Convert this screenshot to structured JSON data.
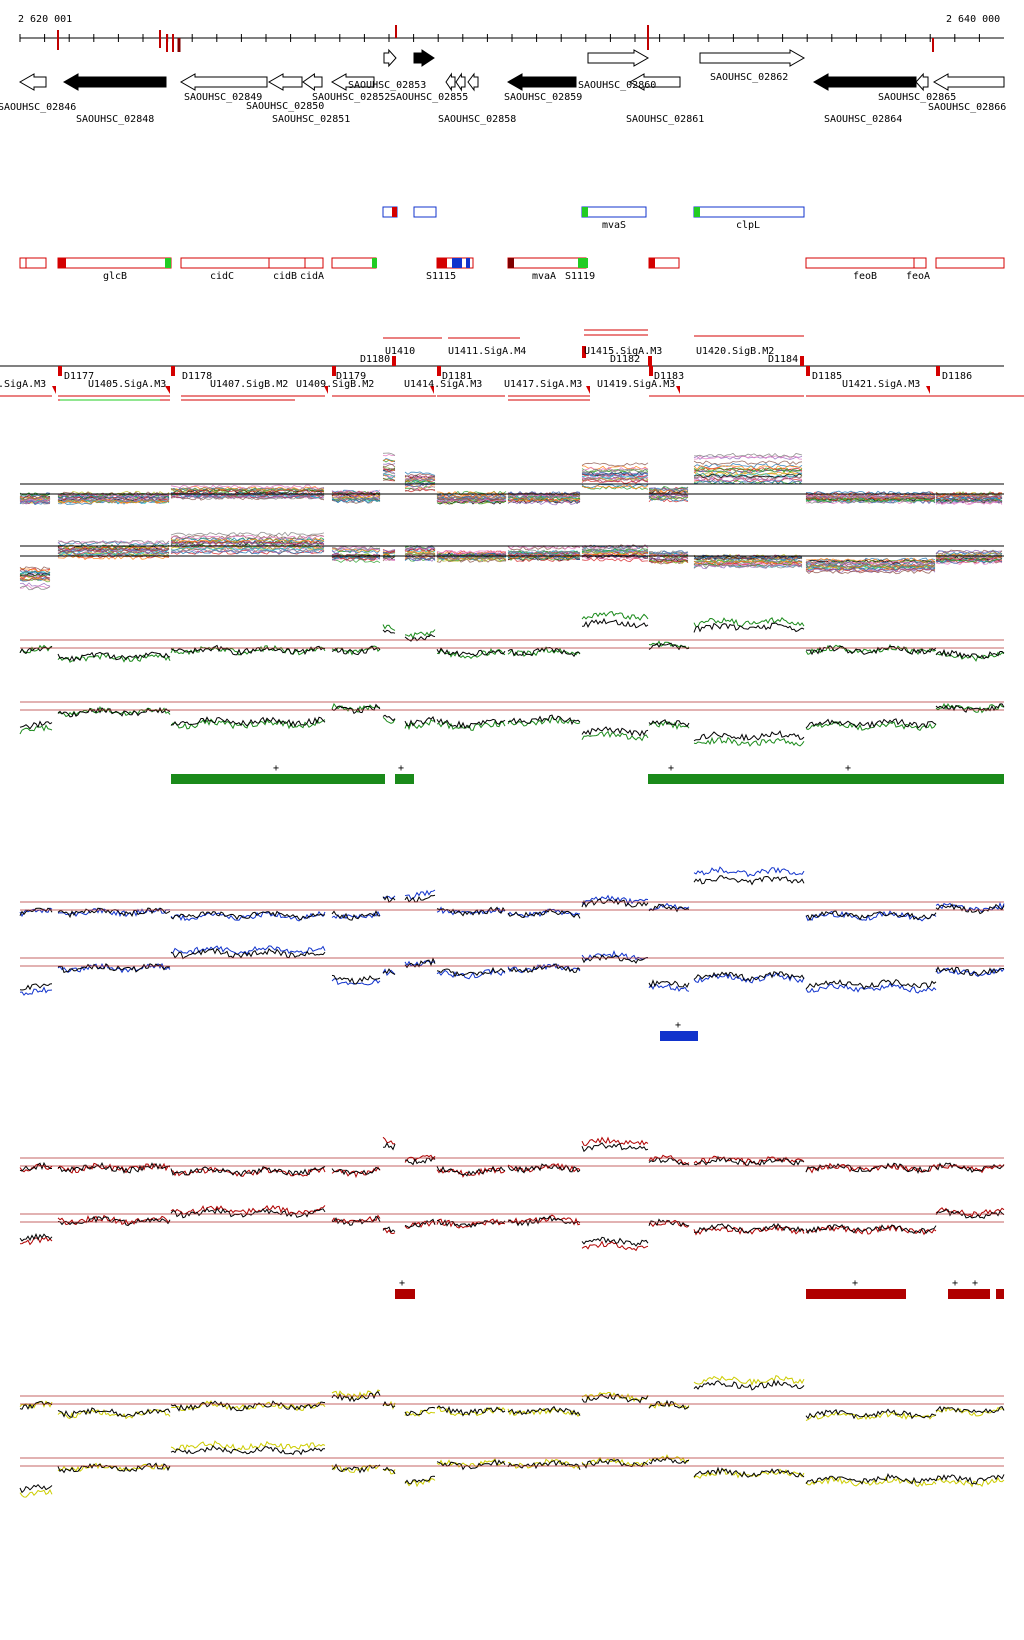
{
  "ruler": {
    "start_label": "2 620 001",
    "end_label": "2 640 000",
    "start": 2620001,
    "end": 2640000
  },
  "gene_labels": [
    "SAOUHSC_02846",
    "SAOUHSC_02848",
    "SAOUHSC_02849",
    "SAOUHSC_02850",
    "SAOUHSC_02851",
    "SAOUHSC_02852",
    "SAOUHSC_02853",
    "SAOUHSC_02855",
    "SAOUHSC_02858",
    "SAOUHSC_02859",
    "SAOUHSC_02860",
    "SAOUHSC_02861",
    "SAOUHSC_02862",
    "SAOUHSC_02864",
    "SAOUHSC_02865",
    "SAOUHSC_02866"
  ],
  "blue_feature_labels": [
    "mvaS",
    "clpL"
  ],
  "red_feature_labels": [
    "glcB",
    "cidC",
    "cidB",
    "cidA",
    "S1115",
    "mvaA",
    "S1119",
    "feoB",
    "feoA"
  ],
  "upper_segment_labels": [
    "U1410",
    "U1411.SigA.M4",
    "U1415.SigA.M3",
    "U1420.SigB.M2",
    "D1180",
    "D1182",
    "D1184"
  ],
  "lower_segment_labels": [
    ".SigA.M3",
    "D1177",
    "U1405.SigA.M3",
    "D1178",
    "U1407.SigB.M2",
    "D1179",
    "U1409.SigB.M2",
    "D1181",
    "U1414.SigA.M3",
    "U1417.SigA.M3",
    "U1419.SigA.M3",
    "D1183",
    "D1185",
    "U1421.SigA.M3",
    "D1186"
  ],
  "colors": {
    "red": "#d40000",
    "green_feature": "#22cc22",
    "blue_feature": "#1133cc",
    "track_green": "#1a8a1a",
    "track_blue": "#1133cc",
    "track_red": "#b00000",
    "track_yellow": "#cccc00",
    "threshold": "#b03030"
  },
  "plus_marker": "+"
}
